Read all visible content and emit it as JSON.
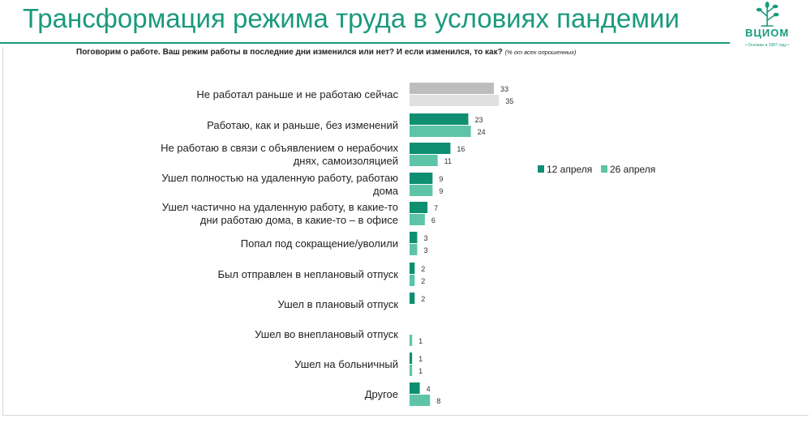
{
  "header": {
    "title": "Трансформация режима труда в условиях пандемии",
    "question": "Поговорим о работе. Ваш режим работы в последние дни изменился или нет? И если изменился, то как?",
    "note": "(% от всех опрошенных)"
  },
  "logo": {
    "name": "ВЦИОМ",
    "tagline": "• Основан в 1987 году •",
    "icon": "tree-icon"
  },
  "colors": {
    "series1": "#0f8f72",
    "series2": "#5ec4a8",
    "first_row_series1": "#bdbdbd",
    "first_row_series2": "#e0e0e0"
  },
  "chart_data": {
    "type": "bar",
    "orientation": "horizontal",
    "categories": [
      [
        "Не работал раньше и не работаю сейчас"
      ],
      [
        "Работаю, как и раньше, без изменений"
      ],
      [
        "Не работаю в связи с объявлением о нерабочих",
        "днях, самоизоляцией"
      ],
      [
        "Ушел полностью на удаленную работу, работаю",
        "дома"
      ],
      [
        "Ушел частично на удаленную работу, в какие-то",
        "дни работаю дома, в какие-то – в офисе"
      ],
      [
        "Попал под сокращение/уволили"
      ],
      [
        "Был отправлен в неплановый отпуск"
      ],
      [
        "Ушел в плановый отпуск"
      ],
      [
        "Ушел во внеплановый отпуск"
      ],
      [
        "Ушел на больничный"
      ],
      [
        "Другое"
      ]
    ],
    "series": [
      {
        "name": "12 апреля",
        "values": [
          33,
          23,
          16,
          9,
          7,
          3,
          2,
          2,
          null,
          1,
          4
        ]
      },
      {
        "name": "26 апреля",
        "values": [
          35,
          24,
          11,
          9,
          6,
          3,
          2,
          null,
          1,
          1,
          8
        ]
      }
    ],
    "legend_position": "right"
  }
}
